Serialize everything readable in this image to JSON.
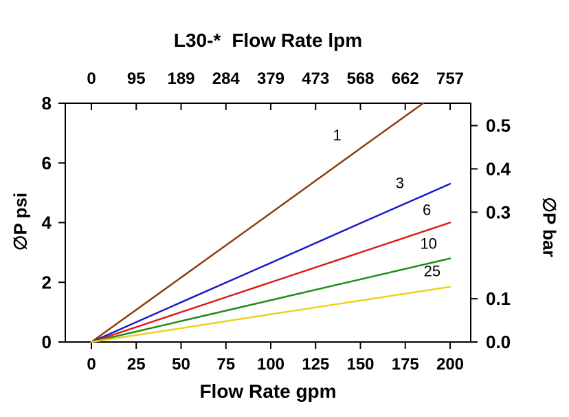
{
  "chart_data": {
    "type": "line",
    "title": {
      "model": "L30-*",
      "text": "Flow Rate lpm"
    },
    "xlabel": "Flow Rate gpm",
    "ylabel_left": "∅P psi",
    "ylabel_right": "∅P bar",
    "x_axis": {
      "label": "Flow Rate gpm",
      "unit": "gpm",
      "min": 0,
      "max": 200,
      "ticks": [
        0,
        25,
        50,
        75,
        100,
        125,
        150,
        175,
        200
      ]
    },
    "x_axis_top": {
      "label": "Flow Rate lpm",
      "unit": "lpm",
      "tick_labels": [
        "0",
        "95",
        "189",
        "284",
        "379",
        "473",
        "568",
        "662",
        "757"
      ]
    },
    "y_axis_left": {
      "label": "∅P psi",
      "unit": "psi",
      "min": 0,
      "max": 8,
      "ticks": [
        0,
        2,
        4,
        6,
        8
      ]
    },
    "y_axis_right": {
      "label": "∅P bar",
      "unit": "bar",
      "ticks": [
        {
          "label": "0.5",
          "psi": 7.25
        },
        {
          "label": "0.4",
          "psi": 5.8
        },
        {
          "label": "0.3",
          "psi": 4.35
        },
        {
          "label": "0.1",
          "psi": 1.45
        },
        {
          "label": "0.0",
          "psi": 0.0
        }
      ]
    },
    "grid": "off",
    "series": [
      {
        "name": "1",
        "color": "#8f3b0e",
        "points": [
          [
            0,
            0
          ],
          [
            50,
            2.16
          ],
          [
            100,
            4.32
          ],
          [
            150,
            6.49
          ],
          [
            185,
            8.0
          ]
        ],
        "label_at": [
          137,
          6.75
        ]
      },
      {
        "name": "3",
        "color": "#1a1acd",
        "points": [
          [
            0,
            0
          ],
          [
            50,
            1.33
          ],
          [
            100,
            2.65
          ],
          [
            150,
            3.98
          ],
          [
            200,
            5.3
          ]
        ],
        "label_at": [
          172,
          5.15
        ]
      },
      {
        "name": "6",
        "color": "#e01818",
        "points": [
          [
            0,
            0
          ],
          [
            50,
            1.0
          ],
          [
            100,
            2.0
          ],
          [
            150,
            3.0
          ],
          [
            200,
            4.0
          ]
        ],
        "label_at": [
          187,
          4.25
        ]
      },
      {
        "name": "10",
        "color": "#1e8c1e",
        "points": [
          [
            0,
            0
          ],
          [
            50,
            0.7
          ],
          [
            100,
            1.4
          ],
          [
            150,
            2.1
          ],
          [
            200,
            2.8
          ]
        ],
        "label_at": [
          188,
          3.12
        ]
      },
      {
        "name": "25",
        "color": "#f0d01e",
        "points": [
          [
            0,
            0
          ],
          [
            50,
            0.46
          ],
          [
            100,
            0.93
          ],
          [
            125,
            1.16
          ],
          [
            150,
            1.39
          ],
          [
            175,
            1.62
          ],
          [
            200,
            1.85
          ]
        ],
        "label_at": [
          190,
          2.2
        ]
      }
    ]
  }
}
